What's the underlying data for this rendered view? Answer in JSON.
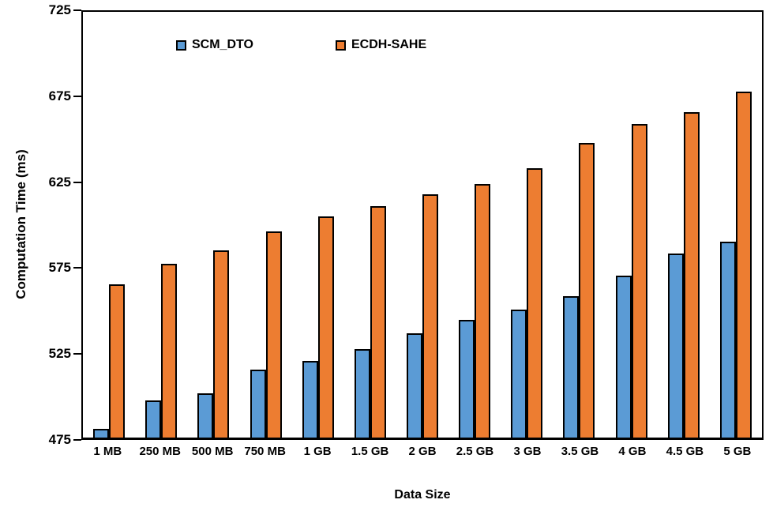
{
  "chart_data": {
    "type": "bar",
    "categories": [
      "1 MB",
      "250 MB",
      "500 MB",
      "750 MB",
      "1 GB",
      "1.5 GB",
      "2 GB",
      "2.5 GB",
      "3 GB",
      "3.5 GB",
      "4 GB",
      "4.5 GB",
      "5 GB"
    ],
    "series": [
      {
        "name": "SCM_DTO",
        "color": "#5B9BD5",
        "values": [
          480,
          497,
          501,
          515,
          520,
          527,
          536,
          544,
          550,
          558,
          570,
          583,
          590
        ]
      },
      {
        "name": "ECDH-SAHE",
        "color": "#ED7D31",
        "values": [
          565,
          577,
          585,
          596,
          605,
          611,
          618,
          624,
          633,
          648,
          659,
          666,
          678
        ]
      }
    ],
    "xlabel": "Data Size",
    "ylabel": "Computation Time (ms)",
    "ylim": [
      475,
      725
    ],
    "ytick_step": 50,
    "yticks": [
      475,
      525,
      575,
      625,
      675,
      725
    ],
    "grid": false,
    "legend_position": "top-inside",
    "bar_outline_color": "#000000",
    "background_color": "#FFFFFF"
  }
}
